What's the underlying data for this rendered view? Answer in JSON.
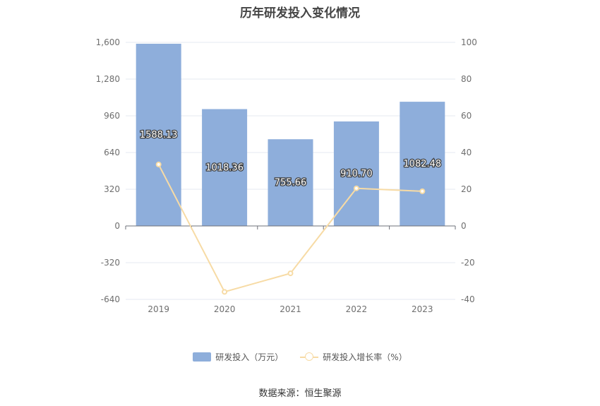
{
  "chart_data": {
    "type": "bar",
    "title": "历年研发投入变化情况",
    "categories": [
      "2019",
      "2020",
      "2021",
      "2022",
      "2023"
    ],
    "series": [
      {
        "name": "研发投入（万元）",
        "type": "bar",
        "axis": "left",
        "color": "#8eaedb",
        "values": [
          1588.13,
          1018.36,
          755.66,
          910.7,
          1082.48
        ],
        "labels": [
          "1588.13",
          "1018.36",
          "755.66",
          "910.70",
          "1082.48"
        ]
      },
      {
        "name": "研发投入增长率（%）",
        "type": "line",
        "axis": "right",
        "color": "#f7dba5",
        "values": [
          33.5,
          -35.9,
          -25.8,
          20.5,
          18.9
        ]
      }
    ],
    "y_left": {
      "min": -640,
      "max": 1600,
      "ticks": [
        "-640",
        "-320",
        "0",
        "320",
        "640",
        "960",
        "1,280",
        "1,600"
      ]
    },
    "y_right": {
      "min": -40,
      "max": 100,
      "ticks": [
        "-40",
        "-20",
        "0",
        "20",
        "40",
        "60",
        "80",
        "100"
      ]
    },
    "grid": true,
    "legend_position": "bottom"
  },
  "legend": {
    "bar_label": "研发投入（万元）",
    "line_label": "研发投入增长率（%）"
  },
  "source": "数据来源：恒生聚源"
}
